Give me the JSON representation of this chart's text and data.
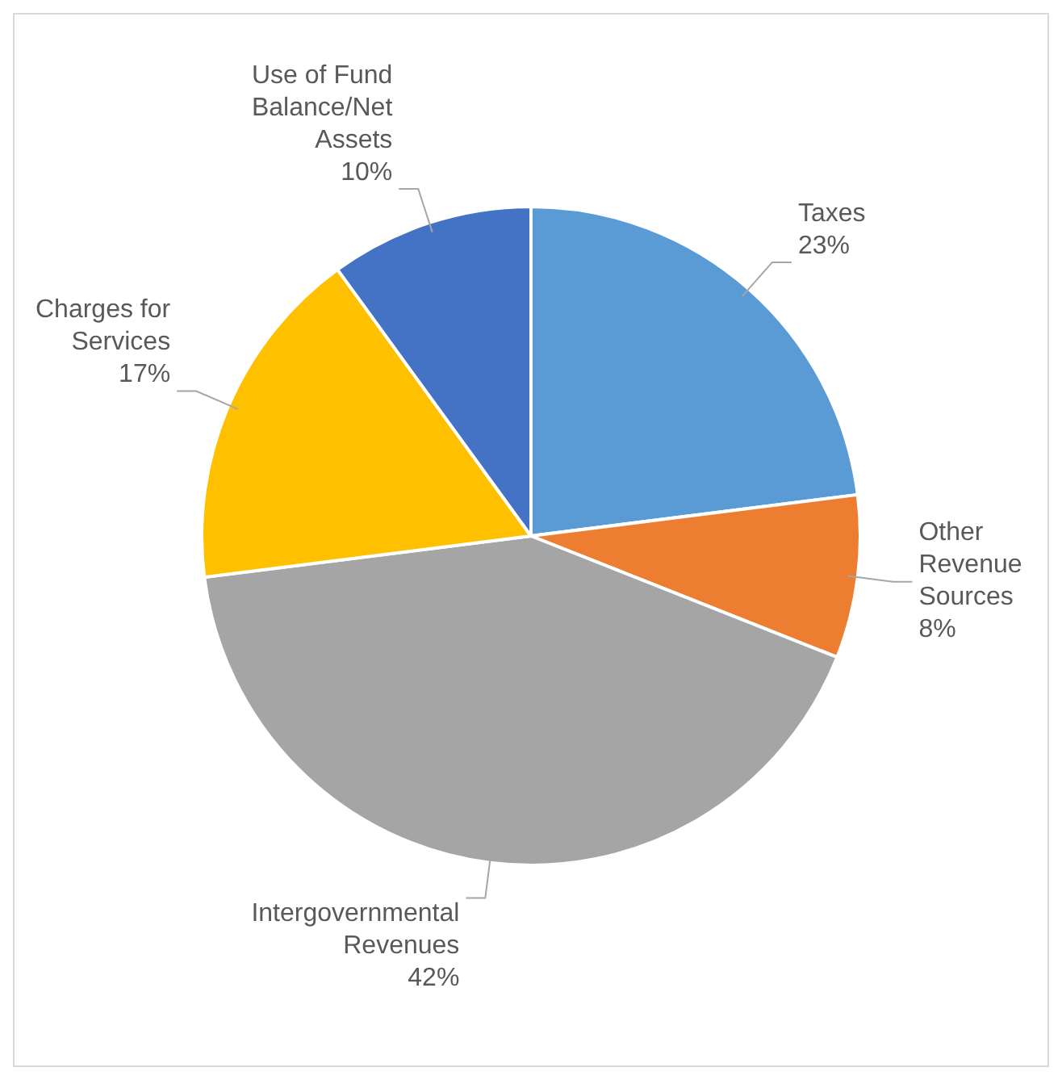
{
  "chart_data": {
    "type": "pie",
    "categories": [
      "Taxes",
      "Other Revenue Sources",
      "Intergovernmental Revenues",
      "Charges for Services",
      "Use of Fund Balance/Net Assets"
    ],
    "values": [
      23,
      8,
      42,
      17,
      10
    ],
    "value_labels": [
      "23%",
      "8%",
      "42%",
      "17%",
      "10%"
    ],
    "colors": [
      "#5b9bd5",
      "#ed7d31",
      "#a5a5a5",
      "#ffc000",
      "#4472c4"
    ],
    "legend": false
  }
}
